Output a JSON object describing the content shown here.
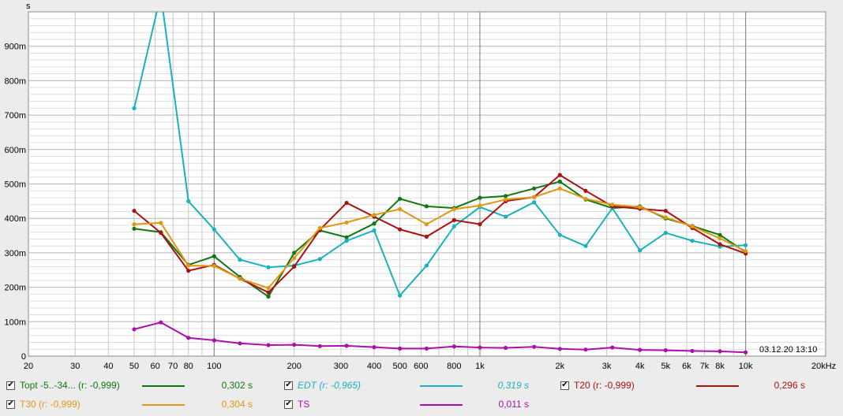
{
  "chart_data": {
    "type": "line",
    "ylabel": "s",
    "xunit": "20kHz",
    "timestamp": "03.12.20 13:10",
    "xscale": "log",
    "xlim": [
      20,
      20000
    ],
    "ylim": [
      0,
      1.0
    ],
    "grid": true,
    "x_ticks": [
      {
        "v": 20,
        "label": "20"
      },
      {
        "v": 30,
        "label": "30"
      },
      {
        "v": 40,
        "label": "40"
      },
      {
        "v": 50,
        "label": "50"
      },
      {
        "v": 60,
        "label": "60"
      },
      {
        "v": 70,
        "label": "70"
      },
      {
        "v": 80,
        "label": "80"
      },
      {
        "v": 100,
        "label": "100"
      },
      {
        "v": 200,
        "label": "200"
      },
      {
        "v": 300,
        "label": "300"
      },
      {
        "v": 400,
        "label": "400"
      },
      {
        "v": 500,
        "label": "500"
      },
      {
        "v": 600,
        "label": "600"
      },
      {
        "v": 800,
        "label": "800"
      },
      {
        "v": 1000,
        "label": "1k"
      },
      {
        "v": 2000,
        "label": "2k"
      },
      {
        "v": 3000,
        "label": "3k"
      },
      {
        "v": 4000,
        "label": "4k"
      },
      {
        "v": 5000,
        "label": "5k"
      },
      {
        "v": 6000,
        "label": "6k"
      },
      {
        "v": 7000,
        "label": "7k"
      },
      {
        "v": 8000,
        "label": "8k"
      },
      {
        "v": 10000,
        "label": "10k"
      }
    ],
    "y_ticks": [
      {
        "v": 0,
        "label": "0"
      },
      {
        "v": 0.1,
        "label": "100m"
      },
      {
        "v": 0.2,
        "label": "200m"
      },
      {
        "v": 0.3,
        "label": "300m"
      },
      {
        "v": 0.4,
        "label": "400m"
      },
      {
        "v": 0.5,
        "label": "500m"
      },
      {
        "v": 0.6,
        "label": "600m"
      },
      {
        "v": 0.7,
        "label": "700m"
      },
      {
        "v": 0.8,
        "label": "800m"
      },
      {
        "v": 0.9,
        "label": "900m"
      }
    ],
    "x": [
      50,
      63,
      80,
      100,
      125,
      160,
      200,
      250,
      315,
      400,
      500,
      630,
      800,
      1000,
      1250,
      1600,
      2000,
      2500,
      3150,
      4000,
      5000,
      6300,
      8000,
      10000
    ],
    "series": [
      {
        "name": "Topt -5..-34... (r: -0,999)",
        "color": "#117711",
        "checked": true,
        "italic": false,
        "value": "0,302 s",
        "values": [
          0.37,
          0.36,
          0.265,
          0.29,
          0.23,
          0.173,
          0.3,
          0.365,
          0.345,
          0.385,
          0.457,
          0.435,
          0.43,
          0.46,
          0.465,
          0.487,
          0.507,
          0.455,
          0.43,
          0.435,
          0.4,
          0.378,
          0.352,
          0.302
        ]
      },
      {
        "name": "EDT (r: -0,965)",
        "color": "#19b2bc",
        "checked": true,
        "italic": true,
        "value": "0,319 s",
        "values": [
          0.72,
          1.05,
          0.45,
          0.368,
          0.28,
          0.258,
          0.263,
          0.282,
          0.335,
          0.365,
          0.176,
          0.263,
          0.377,
          0.433,
          0.405,
          0.447,
          0.352,
          0.32,
          0.43,
          0.307,
          0.358,
          0.335,
          0.318,
          0.322
        ]
      },
      {
        "name": "T20 (r: -0,999)",
        "color": "#aa1111",
        "checked": true,
        "italic": false,
        "value": "0,296 s",
        "values": [
          0.422,
          0.358,
          0.248,
          0.265,
          0.225,
          0.185,
          0.26,
          0.367,
          0.445,
          0.405,
          0.368,
          0.347,
          0.395,
          0.383,
          0.45,
          0.462,
          0.526,
          0.48,
          0.435,
          0.428,
          0.422,
          0.372,
          0.325,
          0.298
        ]
      },
      {
        "name": "T30 (r: -0,999)",
        "color": "#dd9911",
        "checked": true,
        "italic": false,
        "value": "0,304 s",
        "values": [
          0.383,
          0.387,
          0.263,
          0.262,
          0.225,
          0.198,
          0.285,
          0.372,
          0.388,
          0.41,
          0.427,
          0.383,
          0.427,
          0.437,
          0.455,
          0.462,
          0.487,
          0.457,
          0.44,
          0.433,
          0.403,
          0.377,
          0.342,
          0.305
        ]
      },
      {
        "name": "TS",
        "color": "#aa11aa",
        "checked": true,
        "italic": false,
        "value": "0,011 s",
        "values": [
          0.078,
          0.098,
          0.053,
          0.046,
          0.037,
          0.032,
          0.033,
          0.029,
          0.03,
          0.026,
          0.022,
          0.022,
          0.028,
          0.025,
          0.024,
          0.027,
          0.021,
          0.019,
          0.025,
          0.018,
          0.017,
          0.015,
          0.014,
          0.011
        ]
      }
    ]
  }
}
